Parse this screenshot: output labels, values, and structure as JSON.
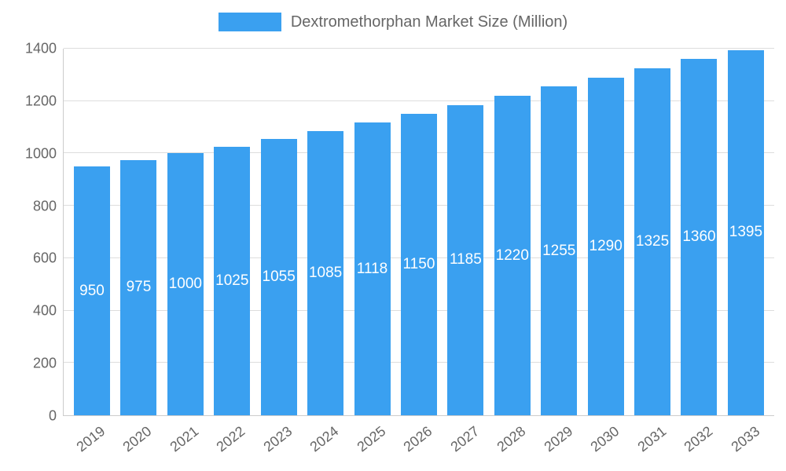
{
  "chart_data": {
    "type": "bar",
    "title": "Dextromethorphan Market Size (Million)",
    "categories": [
      "2019",
      "2020",
      "2021",
      "2022",
      "2023",
      "2024",
      "2025",
      "2026",
      "2027",
      "2028",
      "2029",
      "2030",
      "2031",
      "2032",
      "2033"
    ],
    "values": [
      950,
      975,
      1000,
      1025,
      1055,
      1085,
      1118,
      1150,
      1185,
      1220,
      1255,
      1290,
      1325,
      1360,
      1395
    ],
    "xlabel": "",
    "ylabel": "",
    "ylim": [
      0,
      1400
    ],
    "yticks": [
      0,
      200,
      400,
      600,
      800,
      1000,
      1200,
      1400
    ],
    "grid": true,
    "legend_position": "top",
    "value_labels_position": "center-of-bar",
    "colors": {
      "bar": "#3aa0f0",
      "value_label": "#ffffff",
      "axis_text": "#666666",
      "grid": "#dddddd",
      "axis_line": "#cccccc",
      "background": "#ffffff"
    }
  }
}
